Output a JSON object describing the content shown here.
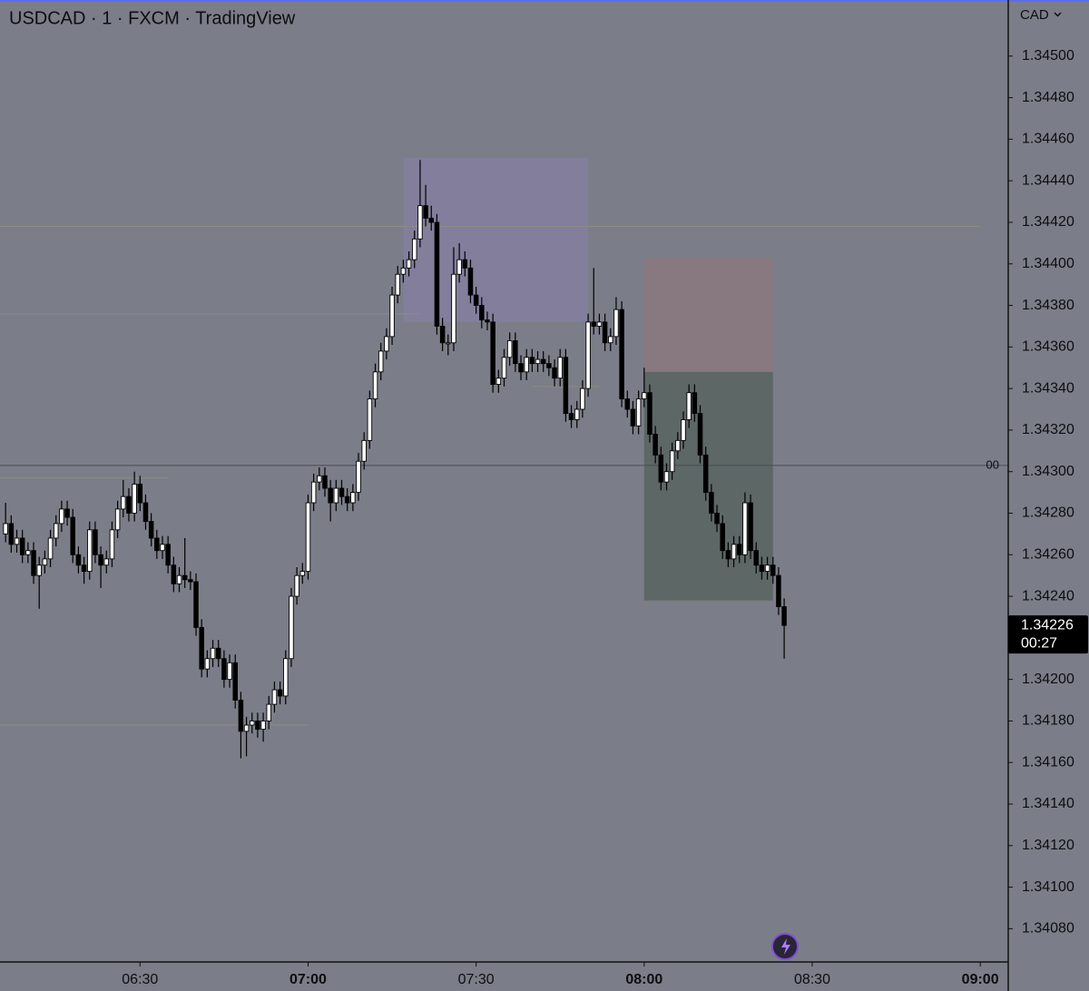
{
  "chart_data": {
    "type": "candlestick",
    "title": "USDCAD · 1 · FXCM · TradingView",
    "currency": "CAD",
    "up_color": "#ffffff",
    "down_color": "#000000",
    "x": [
      "06:06",
      "06:07",
      "06:08",
      "06:09",
      "06:10",
      "06:11",
      "06:12",
      "06:13",
      "06:14",
      "06:15",
      "06:16",
      "06:17",
      "06:18",
      "06:19",
      "06:20",
      "06:21",
      "06:22",
      "06:23",
      "06:24",
      "06:25",
      "06:26",
      "06:27",
      "06:28",
      "06:29",
      "06:30",
      "06:31",
      "06:32",
      "06:33",
      "06:34",
      "06:35",
      "06:36",
      "06:37",
      "06:38",
      "06:39",
      "06:40",
      "06:41",
      "06:42",
      "06:43",
      "06:44",
      "06:45",
      "06:46",
      "06:47",
      "06:48",
      "06:49",
      "06:50",
      "06:51",
      "06:52",
      "06:53",
      "06:54",
      "06:55",
      "06:56",
      "06:57",
      "06:58",
      "06:59",
      "07:00",
      "07:01",
      "07:02",
      "07:03",
      "07:04",
      "07:05",
      "07:06",
      "07:07",
      "07:08",
      "07:09",
      "07:10",
      "07:11",
      "07:12",
      "07:13",
      "07:14",
      "07:15",
      "07:16",
      "07:17",
      "07:18",
      "07:19",
      "07:20",
      "07:21",
      "07:22",
      "07:23",
      "07:24",
      "07:25",
      "07:26",
      "07:27",
      "07:28",
      "07:29",
      "07:30",
      "07:31",
      "07:32",
      "07:33",
      "07:34",
      "07:35",
      "07:36",
      "07:37",
      "07:38",
      "07:39",
      "07:40",
      "07:41",
      "07:42",
      "07:43",
      "07:44",
      "07:45",
      "07:46",
      "07:47",
      "07:48",
      "07:49",
      "07:50",
      "07:51",
      "07:52",
      "07:53",
      "07:54",
      "07:55",
      "07:56",
      "07:57",
      "07:58",
      "07:59",
      "08:00",
      "08:01",
      "08:02",
      "08:03",
      "08:04",
      "08:05",
      "08:06",
      "08:07",
      "08:08",
      "08:09",
      "08:10",
      "08:11",
      "08:12",
      "08:13",
      "08:14",
      "08:15",
      "08:16",
      "08:17",
      "08:18",
      "08:19",
      "08:20",
      "08:21",
      "08:22",
      "08:23",
      "08:24",
      "08:25"
    ],
    "open": [
      1.3427,
      1.34275,
      1.34265,
      1.34268,
      1.3426,
      1.34262,
      1.3425,
      1.34255,
      1.34258,
      1.34268,
      1.34275,
      1.34282,
      1.34278,
      1.3426,
      1.34255,
      1.34252,
      1.34272,
      1.3426,
      1.34255,
      1.34258,
      1.34272,
      1.34282,
      1.34288,
      1.3428,
      1.34294,
      1.34285,
      1.34276,
      1.34268,
      1.34262,
      1.34265,
      1.34255,
      1.34246,
      1.3425,
      1.34248,
      1.34247,
      1.34225,
      1.34205,
      1.3421,
      1.34215,
      1.3421,
      1.342,
      1.34208,
      1.3419,
      1.34175,
      1.34178,
      1.3418,
      1.34176,
      1.3418,
      1.34188,
      1.34195,
      1.34192,
      1.3421,
      1.3424,
      1.3425,
      1.34252,
      1.34285,
      1.34295,
      1.34298,
      1.34292,
      1.34285,
      1.34292,
      1.34288,
      1.34285,
      1.3429,
      1.34305,
      1.34315,
      1.34335,
      1.34348,
      1.34358,
      1.34365,
      1.34385,
      1.34395,
      1.34398,
      1.34402,
      1.34412,
      1.34428,
      1.34422,
      1.3442,
      1.3437,
      1.34362,
      1.34362,
      1.34395,
      1.34402,
      1.34398,
      1.34385,
      1.3438,
      1.34373,
      1.34372,
      1.34342,
      1.34345,
      1.34355,
      1.34363,
      1.34352,
      1.34348,
      1.34355,
      1.34352,
      1.34354,
      1.34352,
      1.3435,
      1.34345,
      1.34355,
      1.34328,
      1.34325,
      1.3433,
      1.3434,
      1.34372,
      1.3437,
      1.34372,
      1.34362,
      1.34365,
      1.34378,
      1.34335,
      1.3433,
      1.34322,
      1.34335,
      1.34338,
      1.34318,
      1.34308,
      1.34295,
      1.343,
      1.3431,
      1.34315,
      1.34325,
      1.34338,
      1.34328,
      1.34308,
      1.3429,
      1.3428,
      1.34275,
      1.34262,
      1.34258,
      1.34265,
      1.3426,
      1.34285,
      1.34262,
      1.34255,
      1.34252,
      1.34255,
      1.3425,
      1.34235
    ],
    "high": [
      1.34285,
      1.34279,
      1.34272,
      1.34272,
      1.34266,
      1.34266,
      1.34259,
      1.34262,
      1.34272,
      1.34279,
      1.34286,
      1.34286,
      1.34282,
      1.34264,
      1.34259,
      1.34276,
      1.34276,
      1.34264,
      1.34262,
      1.34276,
      1.34286,
      1.34296,
      1.34292,
      1.343,
      1.34298,
      1.34289,
      1.3428,
      1.34272,
      1.34269,
      1.34269,
      1.34259,
      1.34254,
      1.34268,
      1.34252,
      1.34251,
      1.34229,
      1.34214,
      1.34219,
      1.34219,
      1.34214,
      1.34212,
      1.34212,
      1.34194,
      1.34182,
      1.34184,
      1.34184,
      1.34184,
      1.34192,
      1.34199,
      1.34199,
      1.34214,
      1.34244,
      1.34254,
      1.34256,
      1.34289,
      1.34299,
      1.34302,
      1.34302,
      1.34296,
      1.34296,
      1.34296,
      1.34292,
      1.34294,
      1.34309,
      1.34319,
      1.34339,
      1.34352,
      1.34362,
      1.34369,
      1.34389,
      1.34399,
      1.34402,
      1.34406,
      1.34416,
      1.3445,
      1.34438,
      1.34428,
      1.34424,
      1.34374,
      1.34366,
      1.34408,
      1.3441,
      1.34406,
      1.34402,
      1.34389,
      1.34384,
      1.34377,
      1.34376,
      1.34349,
      1.34359,
      1.34367,
      1.34367,
      1.34356,
      1.34359,
      1.34359,
      1.34358,
      1.34358,
      1.34356,
      1.34354,
      1.34359,
      1.34359,
      1.34332,
      1.34334,
      1.34344,
      1.34376,
      1.34398,
      1.34376,
      1.34376,
      1.34369,
      1.34384,
      1.34382,
      1.34339,
      1.34334,
      1.34339,
      1.3435,
      1.34342,
      1.34322,
      1.34312,
      1.34304,
      1.34314,
      1.34319,
      1.34329,
      1.34342,
      1.34342,
      1.34332,
      1.34312,
      1.34294,
      1.34284,
      1.34279,
      1.34266,
      1.34269,
      1.34269,
      1.3429,
      1.34289,
      1.34266,
      1.34259,
      1.34259,
      1.34259,
      1.34254,
      1.34239
    ],
    "low": [
      1.34266,
      1.34261,
      1.34261,
      1.34256,
      1.34256,
      1.34246,
      1.34234,
      1.34251,
      1.34254,
      1.34264,
      1.34271,
      1.34274,
      1.34256,
      1.34251,
      1.34246,
      1.34248,
      1.34256,
      1.34244,
      1.34251,
      1.34254,
      1.34268,
      1.34278,
      1.34276,
      1.34276,
      1.34281,
      1.34272,
      1.34264,
      1.34258,
      1.34258,
      1.34251,
      1.34242,
      1.34242,
      1.34244,
      1.34243,
      1.34221,
      1.34201,
      1.34201,
      1.34206,
      1.34206,
      1.34196,
      1.34196,
      1.34186,
      1.34162,
      1.34163,
      1.34174,
      1.34172,
      1.3417,
      1.34176,
      1.34184,
      1.34188,
      1.34188,
      1.34206,
      1.34236,
      1.34246,
      1.34248,
      1.34281,
      1.34291,
      1.34288,
      1.34276,
      1.34281,
      1.34284,
      1.34281,
      1.34281,
      1.34286,
      1.34301,
      1.34311,
      1.34331,
      1.34344,
      1.34354,
      1.34361,
      1.34381,
      1.34391,
      1.34394,
      1.34398,
      1.34408,
      1.34418,
      1.34416,
      1.34366,
      1.34358,
      1.34356,
      1.34358,
      1.34391,
      1.34394,
      1.34381,
      1.34376,
      1.34369,
      1.34368,
      1.34338,
      1.34338,
      1.34341,
      1.34351,
      1.34348,
      1.34344,
      1.34344,
      1.34348,
      1.34348,
      1.34348,
      1.34346,
      1.34341,
      1.34341,
      1.34324,
      1.34321,
      1.34321,
      1.34326,
      1.34336,
      1.34366,
      1.34366,
      1.34358,
      1.34358,
      1.34361,
      1.34331,
      1.34326,
      1.34318,
      1.34318,
      1.34331,
      1.34314,
      1.34304,
      1.34291,
      1.34291,
      1.34296,
      1.34306,
      1.34311,
      1.34321,
      1.34324,
      1.34304,
      1.34286,
      1.34276,
      1.34271,
      1.34258,
      1.34254,
      1.34254,
      1.34256,
      1.34256,
      1.34258,
      1.34251,
      1.34248,
      1.34248,
      1.34246,
      1.34231,
      1.3421
    ],
    "close": [
      1.34275,
      1.34265,
      1.34268,
      1.3426,
      1.34262,
      1.3425,
      1.34255,
      1.34258,
      1.34268,
      1.34275,
      1.34282,
      1.34278,
      1.3426,
      1.34255,
      1.34252,
      1.34272,
      1.3426,
      1.34255,
      1.34258,
      1.34272,
      1.34282,
      1.34288,
      1.3428,
      1.34294,
      1.34285,
      1.34276,
      1.34268,
      1.34262,
      1.34265,
      1.34255,
      1.34246,
      1.3425,
      1.34248,
      1.34247,
      1.34225,
      1.34205,
      1.3421,
      1.34215,
      1.3421,
      1.342,
      1.34208,
      1.3419,
      1.34175,
      1.34178,
      1.3418,
      1.34176,
      1.3418,
      1.34188,
      1.34195,
      1.34192,
      1.3421,
      1.3424,
      1.3425,
      1.34252,
      1.34285,
      1.34295,
      1.34298,
      1.34292,
      1.34285,
      1.34292,
      1.34288,
      1.34285,
      1.3429,
      1.34305,
      1.34315,
      1.34335,
      1.34348,
      1.34358,
      1.34365,
      1.34385,
      1.34395,
      1.34398,
      1.34402,
      1.34412,
      1.34428,
      1.34422,
      1.3442,
      1.3437,
      1.34362,
      1.34362,
      1.34395,
      1.34402,
      1.34398,
      1.34385,
      1.3438,
      1.34373,
      1.34372,
      1.34342,
      1.34345,
      1.34355,
      1.34363,
      1.34352,
      1.34348,
      1.34355,
      1.34352,
      1.34354,
      1.34352,
      1.3435,
      1.34345,
      1.34355,
      1.34328,
      1.34325,
      1.3433,
      1.3434,
      1.34372,
      1.3437,
      1.34372,
      1.34362,
      1.34365,
      1.34378,
      1.34335,
      1.3433,
      1.34322,
      1.34335,
      1.34338,
      1.34318,
      1.34308,
      1.34295,
      1.343,
      1.3431,
      1.34315,
      1.34325,
      1.34338,
      1.34328,
      1.34308,
      1.3429,
      1.3428,
      1.34275,
      1.34262,
      1.34258,
      1.34265,
      1.3426,
      1.34285,
      1.34262,
      1.34255,
      1.34252,
      1.34255,
      1.3425,
      1.34235,
      1.34226
    ],
    "xlim": [
      "06:05",
      "09:05"
    ],
    "xticks": [
      "06:30",
      "07:00",
      "07:30",
      "08:00",
      "08:30",
      "09:00"
    ],
    "ylim": [
      1.34064,
      1.34527
    ],
    "yticks": [
      {
        "value": 1.345,
        "label": "1.34500"
      },
      {
        "value": 1.3448,
        "label": "1.34480"
      },
      {
        "value": 1.3446,
        "label": "1.34460"
      },
      {
        "value": 1.3444,
        "label": "1.34440"
      },
      {
        "value": 1.3442,
        "label": "1.34420"
      },
      {
        "value": 1.344,
        "label": "1.34400"
      },
      {
        "value": 1.3438,
        "label": "1.34380"
      },
      {
        "value": 1.3436,
        "label": "1.34360"
      },
      {
        "value": 1.3434,
        "label": "1.34340"
      },
      {
        "value": 1.3432,
        "label": "1.34320"
      },
      {
        "value": 1.343,
        "label": "1.34300"
      },
      {
        "value": 1.3428,
        "label": "1.34280"
      },
      {
        "value": 1.3426,
        "label": "1.34260"
      },
      {
        "value": 1.3424,
        "label": "1.34240"
      },
      {
        "value": 1.3422,
        "label": "1.34220"
      },
      {
        "value": 1.342,
        "label": "1.34200"
      },
      {
        "value": 1.3418,
        "label": "1.34180"
      },
      {
        "value": 1.3416,
        "label": "1.34160"
      },
      {
        "value": 1.3414,
        "label": "1.34140"
      },
      {
        "value": 1.3412,
        "label": "1.34120"
      },
      {
        "value": 1.341,
        "label": "1.34100"
      },
      {
        "value": 1.3408,
        "label": "1.34080"
      }
    ],
    "last_price": 1.34226,
    "countdown": "00:27",
    "zones": [
      {
        "x": [
          "07:17",
          "07:50"
        ],
        "y": [
          1.34372,
          1.34451
        ],
        "color": "#827e9c"
      },
      {
        "x": [
          "08:00",
          "08:23"
        ],
        "y": [
          1.34348,
          1.34403
        ],
        "color": "#88787f"
      },
      {
        "x": [
          "08:00",
          "08:23"
        ],
        "y": [
          1.34238,
          1.34348
        ],
        "color": "#5d6765"
      }
    ],
    "hlines": [
      {
        "y": 1.34418,
        "x": [
          "06:05",
          "09:00"
        ],
        "color": "#8c8c80"
      },
      {
        "y": 1.34376,
        "x": [
          "06:05",
          "07:20"
        ],
        "color": "#8c8c80"
      },
      {
        "y": 1.34303,
        "x": [
          "06:05",
          "09:05"
        ],
        "color": "#4a4d55",
        "label": "00"
      },
      {
        "y": 1.34297,
        "x": [
          "06:05",
          "06:35"
        ],
        "color": "#8c8c80"
      },
      {
        "y": 1.34341,
        "x": [
          "07:40",
          "07:52"
        ],
        "color": "#8c8c80"
      },
      {
        "y": 1.34178,
        "x": [
          "06:05",
          "07:00"
        ],
        "color": "#8c8c80"
      }
    ]
  }
}
